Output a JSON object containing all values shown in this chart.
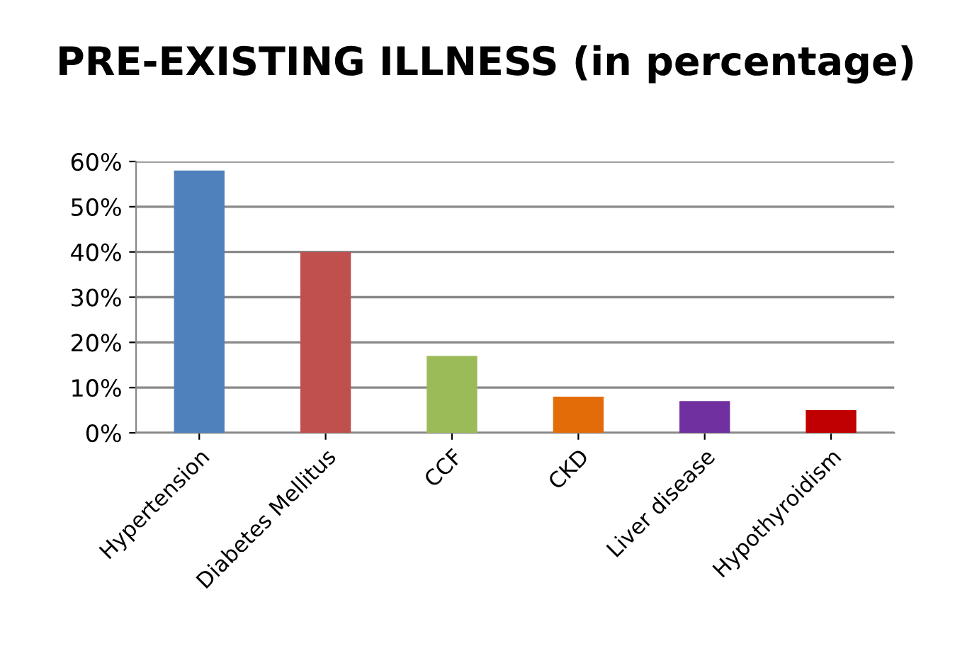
{
  "chart_data": {
    "type": "bar",
    "title": "PRE-EXISTING ILLNESS (in percentage)",
    "categories": [
      "Hypertension",
      "Diabetes Mellitus",
      "CCF",
      "CKD",
      "Liver disease",
      "Hypothyroidism"
    ],
    "values": [
      58,
      40,
      17,
      8,
      7,
      5
    ],
    "colors": [
      "#4f81bd",
      "#c0504d",
      "#9bbb59",
      "#e36c09",
      "#7030a0",
      "#c00000"
    ],
    "ylim": [
      0,
      60
    ],
    "yticks": [
      {
        "value": 0,
        "label": "0%"
      },
      {
        "value": 10,
        "label": "10%"
      },
      {
        "value": 20,
        "label": "20%"
      },
      {
        "value": 30,
        "label": "30%"
      },
      {
        "value": 40,
        "label": "40%"
      },
      {
        "value": 50,
        "label": "50%"
      },
      {
        "value": 60,
        "label": "60%"
      }
    ],
    "grid": "y",
    "legend": false
  }
}
